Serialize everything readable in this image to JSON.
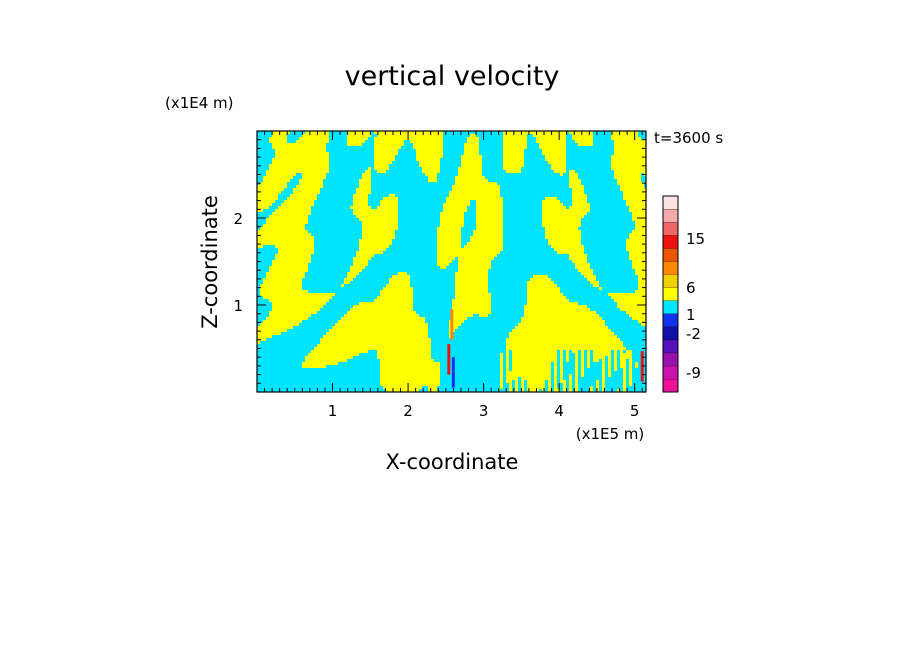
{
  "chart_data": {
    "type": "heatmap",
    "title": "vertical velocity",
    "xlabel": "X-coordinate",
    "ylabel": "Z-coordinate",
    "x_unit": "(x1E5 m)",
    "y_unit": "(x1E4 m)",
    "time_label": "t=3600 s",
    "xlim": [
      0,
      5.15
    ],
    "ylim": [
      0,
      3.0
    ],
    "x_ticks": [
      1,
      2,
      3,
      4,
      5
    ],
    "y_ticks": [
      1,
      2
    ],
    "colorbar": {
      "labels": [
        {
          "value": 15,
          "text": "15"
        },
        {
          "value": 6,
          "text": "6"
        },
        {
          "value": 1,
          "text": "1"
        },
        {
          "value": -2,
          "text": "-2"
        },
        {
          "value": -9,
          "text": "-9"
        }
      ],
      "levels": [
        {
          "color": "#ee1199"
        },
        {
          "color": "#cc11aa"
        },
        {
          "color": "#9911aa"
        },
        {
          "color": "#5511bb"
        },
        {
          "color": "#1111aa"
        },
        {
          "color": "#1133ee"
        },
        {
          "color": "#00e5ff"
        },
        {
          "color": "#ffff00"
        },
        {
          "color": "#f0d000"
        },
        {
          "color": "#ff8800"
        },
        {
          "color": "#ee5500"
        },
        {
          "color": "#ee1111"
        },
        {
          "color": "#ee6666"
        },
        {
          "color": "#f4aaaa"
        },
        {
          "color": "#fde4e4"
        }
      ]
    },
    "field": {
      "description_pos": "yellow = w >= 0",
      "color_positive": "#ffff00",
      "color_negative": "#00e5ff"
    }
  }
}
